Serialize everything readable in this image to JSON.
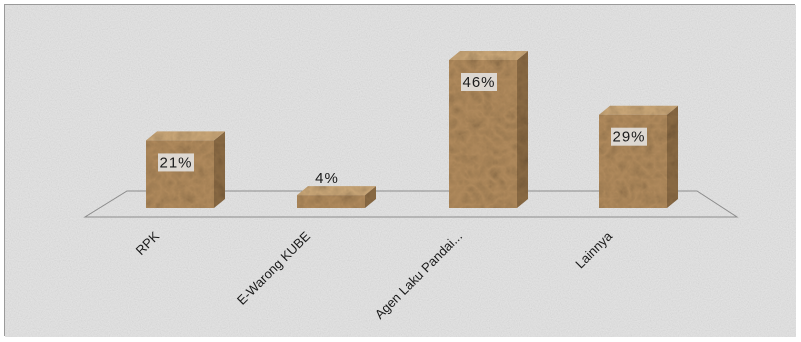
{
  "chart_data": {
    "type": "bar",
    "style": "3d-column",
    "categories": [
      "RPK",
      "E-Warong KUBE",
      "Agen Laku Pandai...",
      "Lainnya"
    ],
    "values": [
      21,
      4,
      46,
      29
    ],
    "value_labels": [
      "21%",
      "4%",
      "46%",
      "29%"
    ],
    "unit": "%",
    "title": "",
    "xlabel": "",
    "ylabel": "",
    "ylim": [
      0,
      46
    ],
    "grid": false,
    "legend": "none"
  },
  "colors": {
    "bar_front": "#b08a5c",
    "bar_side": "#8a6a44",
    "bar_top": "#c9a677",
    "label_box": "#e8e8e8",
    "background": "#e4e4e4",
    "floor_line": "#8c8c8c"
  }
}
